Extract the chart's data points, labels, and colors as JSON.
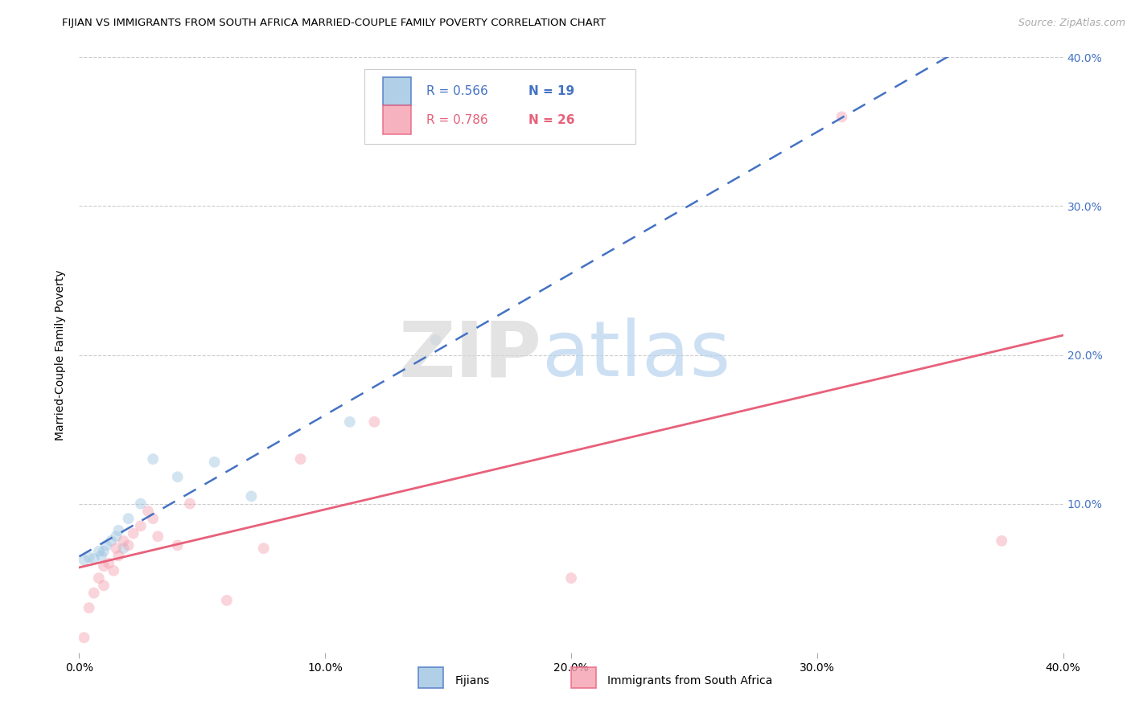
{
  "title": "FIJIAN VS IMMIGRANTS FROM SOUTH AFRICA MARRIED-COUPLE FAMILY POVERTY CORRELATION CHART",
  "source": "Source: ZipAtlas.com",
  "ylabel": "Married-Couple Family Poverty",
  "xlim": [
    0.0,
    0.4
  ],
  "ylim": [
    0.0,
    0.4
  ],
  "xtick_vals": [
    0.0,
    0.1,
    0.2,
    0.3,
    0.4
  ],
  "xtick_labels": [
    "0.0%",
    "10.0%",
    "20.0%",
    "30.0%",
    "40.0%"
  ],
  "ytick_vals": [
    0.1,
    0.2,
    0.3,
    0.4
  ],
  "ytick_labels": [
    "10.0%",
    "20.0%",
    "30.0%",
    "40.0%"
  ],
  "grid_color": "#cccccc",
  "bg_color": "#ffffff",
  "fijian_dot_color": "#9ec4e0",
  "sa_dot_color": "#f4a0b0",
  "fijian_line_color": "#4472c4",
  "sa_line_color": "#e8607a",
  "fijian_label": "Fijians",
  "sa_label": "Immigrants from South Africa",
  "legend_r1": "0.566",
  "legend_n1": "19",
  "legend_r2": "0.786",
  "legend_n2": "26",
  "right_tick_color": "#4472c4",
  "fijian_x": [
    0.002,
    0.004,
    0.006,
    0.008,
    0.009,
    0.01,
    0.011,
    0.013,
    0.015,
    0.016,
    0.018,
    0.02,
    0.025,
    0.03,
    0.04,
    0.055,
    0.07,
    0.11,
    0.145
  ],
  "fijian_y": [
    0.062,
    0.064,
    0.063,
    0.068,
    0.065,
    0.068,
    0.072,
    0.075,
    0.078,
    0.082,
    0.07,
    0.09,
    0.1,
    0.13,
    0.118,
    0.128,
    0.105,
    0.155,
    0.21
  ],
  "sa_x": [
    0.002,
    0.004,
    0.006,
    0.008,
    0.01,
    0.01,
    0.012,
    0.014,
    0.015,
    0.016,
    0.018,
    0.02,
    0.022,
    0.025,
    0.028,
    0.03,
    0.032,
    0.04,
    0.045,
    0.06,
    0.075,
    0.09,
    0.12,
    0.2,
    0.31,
    0.375
  ],
  "sa_y": [
    0.01,
    0.03,
    0.04,
    0.05,
    0.045,
    0.058,
    0.06,
    0.055,
    0.07,
    0.065,
    0.075,
    0.072,
    0.08,
    0.085,
    0.095,
    0.09,
    0.078,
    0.072,
    0.1,
    0.035,
    0.07,
    0.13,
    0.155,
    0.05,
    0.36,
    0.075
  ],
  "fijian_slope": 0.74,
  "fijian_intercept": 0.06,
  "sa_slope": 0.72,
  "sa_intercept": 0.01,
  "marker_size": 100,
  "marker_alpha": 0.45,
  "title_fontsize": 9.5,
  "tick_fontsize": 10,
  "legend_fontsize": 11,
  "source_fontsize": 9,
  "ylabel_fontsize": 10
}
